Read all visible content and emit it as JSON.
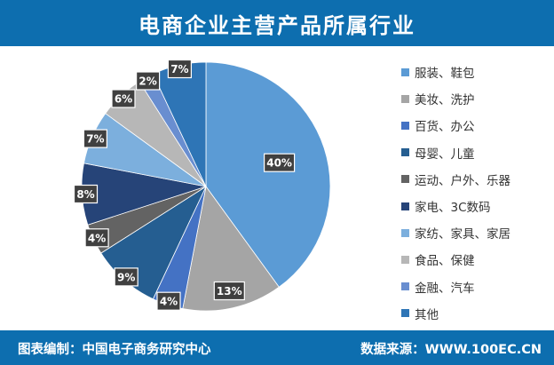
{
  "header": {
    "title": "电商企业主营产品所属行业"
  },
  "footer": {
    "source_label": "图表编制：",
    "source_value": "中国电子商务研究中心",
    "data_label": "数据来源：",
    "data_value": "WWW.100EC.CN"
  },
  "chart_data": {
    "type": "pie",
    "title": "电商企业主营产品所属行业",
    "series": [
      {
        "name": "服装、鞋包",
        "value": 40,
        "label": "40%",
        "color": "#5b9bd5"
      },
      {
        "name": "美妆、洗护",
        "value": 13,
        "label": "13%",
        "color": "#a5a5a5"
      },
      {
        "name": "百货、办公",
        "value": 4,
        "label": "4%",
        "color": "#4472c4"
      },
      {
        "name": "母婴、儿童",
        "value": 9,
        "label": "9%",
        "color": "#255e91"
      },
      {
        "name": "运动、户外、乐器",
        "value": 4,
        "label": "4%",
        "color": "#636363"
      },
      {
        "name": "家电、3C数码",
        "value": 8,
        "label": "8%",
        "color": "#264478"
      },
      {
        "name": "家纺、家具、家居",
        "value": 7,
        "label": "7%",
        "color": "#7cafdd"
      },
      {
        "name": "食品、保健",
        "value": 6,
        "label": "6%",
        "color": "#b7b7b7"
      },
      {
        "name": "金融、汽车",
        "value": 2,
        "label": "2%",
        "color": "#698ed0"
      },
      {
        "name": "其他",
        "value": 7,
        "label": "7%",
        "color": "#2e75b6"
      }
    ],
    "start": "top",
    "direction": "clockwise",
    "legend_position": "right"
  }
}
